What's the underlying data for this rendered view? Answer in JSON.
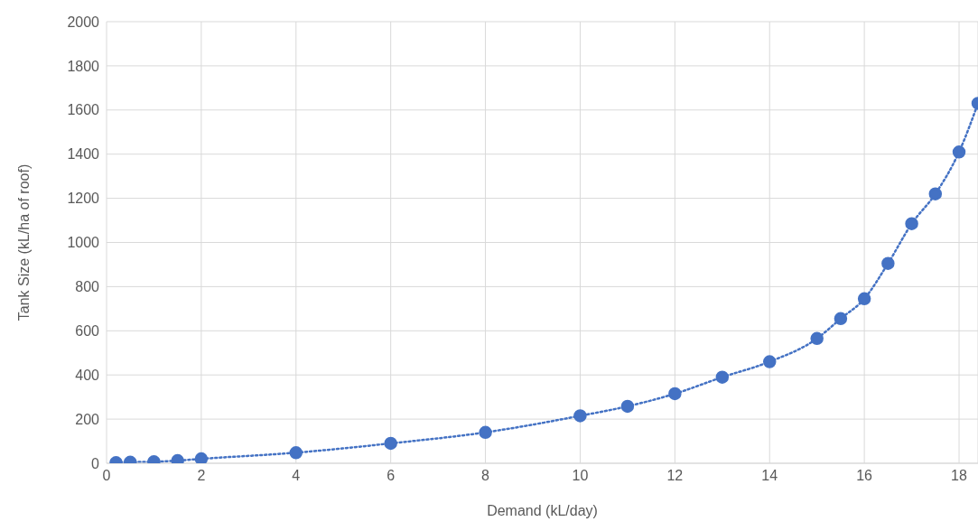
{
  "chart_data": {
    "type": "line",
    "xlabel": "Demand (kL/day)",
    "ylabel": "Tank Size (kL/ha of roof)",
    "x": [
      0.2,
      0.5,
      1,
      1.5,
      2,
      4,
      6,
      8,
      10,
      11,
      12,
      13,
      14,
      15,
      15.5,
      16,
      16.5,
      17,
      17.5,
      18,
      18.4
    ],
    "series": [
      {
        "color": "#4472c4",
        "values": [
          3,
          5,
          7,
          12,
          20,
          48,
          90,
          140,
          215,
          258,
          315,
          390,
          460,
          565,
          655,
          745,
          905,
          1085,
          1220,
          1410,
          1630
        ]
      }
    ],
    "xlim": [
      0,
      18.4
    ],
    "xticks": [
      0,
      2,
      4,
      6,
      8,
      10,
      12,
      14,
      16,
      18
    ],
    "ylim": [
      0,
      2000
    ],
    "yticks": [
      0,
      200,
      400,
      600,
      800,
      1000,
      1200,
      1400,
      1600,
      1800,
      2000
    ],
    "grid": true,
    "marker": "circle",
    "line_style": "dotted"
  }
}
